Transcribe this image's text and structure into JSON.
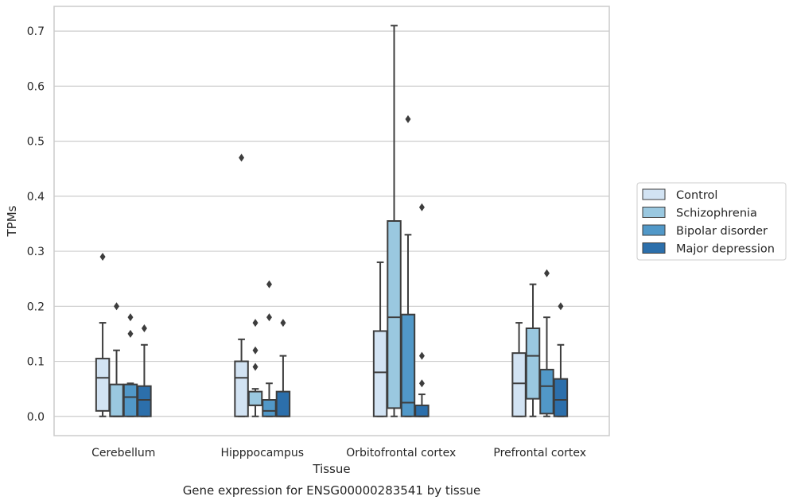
{
  "chart_data": {
    "type": "boxplot",
    "title": "",
    "caption": "Gene expression for ENSG00000283541 by tissue",
    "xlabel": "Tissue",
    "ylabel": "TPMs",
    "ylim": [
      -0.035,
      0.745
    ],
    "yticks": [
      0.0,
      0.1,
      0.2,
      0.3,
      0.4,
      0.5,
      0.6,
      0.7
    ],
    "ytick_labels": [
      "0.0",
      "0.1",
      "0.2",
      "0.3",
      "0.4",
      "0.5",
      "0.6",
      "0.7"
    ],
    "grid": "horizontal",
    "legend_position": "right",
    "categories": [
      "Cerebellum",
      "Hipppocampus",
      "Orbitofrontal cortex",
      "Prefrontal cortex"
    ],
    "series": [
      {
        "name": "Control",
        "color": "#d2e3f3",
        "boxes": [
          {
            "whislo": 0.0,
            "q1": 0.01,
            "med": 0.07,
            "q3": 0.105,
            "whishi": 0.17,
            "fliers": [
              0.29
            ]
          },
          {
            "whislo": 0.0,
            "q1": 0.0,
            "med": 0.07,
            "q3": 0.1,
            "whishi": 0.14,
            "fliers": [
              0.47
            ]
          },
          {
            "whislo": 0.0,
            "q1": 0.0,
            "med": 0.08,
            "q3": 0.155,
            "whishi": 0.28,
            "fliers": []
          },
          {
            "whislo": 0.0,
            "q1": 0.0,
            "med": 0.06,
            "q3": 0.115,
            "whishi": 0.17,
            "fliers": []
          }
        ]
      },
      {
        "name": "Schizophrenia",
        "color": "#9ac8e0",
        "boxes": [
          {
            "whislo": 0.0,
            "q1": 0.0,
            "med": 0.0,
            "q3": 0.058,
            "whishi": 0.12,
            "fliers": [
              0.2
            ]
          },
          {
            "whislo": 0.0,
            "q1": 0.02,
            "med": 0.02,
            "q3": 0.045,
            "whishi": 0.05,
            "fliers": [
              0.09,
              0.12,
              0.17
            ]
          },
          {
            "whislo": 0.0,
            "q1": 0.015,
            "med": 0.18,
            "q3": 0.355,
            "whishi": 0.71,
            "fliers": []
          },
          {
            "whislo": 0.0,
            "q1": 0.032,
            "med": 0.11,
            "q3": 0.16,
            "whishi": 0.24,
            "fliers": []
          }
        ]
      },
      {
        "name": "Bipolar disorder",
        "color": "#5198c8",
        "boxes": [
          {
            "whislo": 0.0,
            "q1": 0.0,
            "med": 0.035,
            "q3": 0.058,
            "whishi": 0.06,
            "fliers": [
              0.15,
              0.18
            ]
          },
          {
            "whislo": 0.0,
            "q1": 0.0,
            "med": 0.01,
            "q3": 0.03,
            "whishi": 0.06,
            "fliers": [
              0.18,
              0.24
            ]
          },
          {
            "whislo": 0.0,
            "q1": 0.0,
            "med": 0.025,
            "q3": 0.185,
            "whishi": 0.33,
            "fliers": [
              0.54
            ]
          },
          {
            "whislo": 0.0,
            "q1": 0.005,
            "med": 0.055,
            "q3": 0.085,
            "whishi": 0.18,
            "fliers": [
              0.26
            ]
          }
        ]
      },
      {
        "name": "Major depression",
        "color": "#2c6fab",
        "boxes": [
          {
            "whislo": 0.0,
            "q1": 0.0,
            "med": 0.03,
            "q3": 0.055,
            "whishi": 0.13,
            "fliers": [
              0.16
            ]
          },
          {
            "whislo": 0.0,
            "q1": 0.0,
            "med": 0.0,
            "q3": 0.045,
            "whishi": 0.11,
            "fliers": [
              0.17
            ]
          },
          {
            "whislo": 0.0,
            "q1": 0.0,
            "med": 0.0,
            "q3": 0.02,
            "whishi": 0.04,
            "fliers": [
              0.06,
              0.11,
              0.38
            ]
          },
          {
            "whislo": 0.0,
            "q1": 0.0,
            "med": 0.03,
            "q3": 0.068,
            "whishi": 0.13,
            "fliers": [
              0.2
            ]
          }
        ]
      }
    ]
  }
}
